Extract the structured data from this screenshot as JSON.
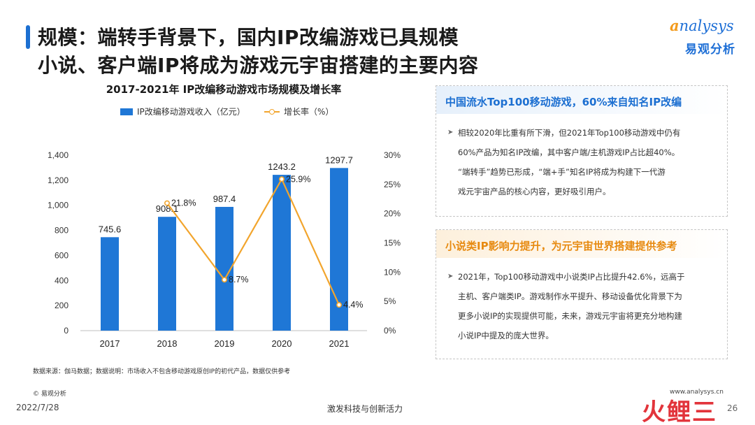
{
  "header": {
    "title_line1": "规模：端转手背景下，国内IP改编游戏已具规模",
    "title_line2": "小说、客户端IP将成为游戏元宇宙搭建的主要内容"
  },
  "logo": {
    "word_prefix": "a",
    "word_rest": "nalysys",
    "cn": "易观分析"
  },
  "chart_title": "2017-2021年 IP改编移动游戏市场规模及增长率",
  "chart_data": {
    "type": "bar",
    "title": "2017-2021年 IP改编移动游戏市场规模及增长率",
    "categories": [
      "2017",
      "2018",
      "2019",
      "2020",
      "2021"
    ],
    "series": [
      {
        "name": "IP改编移动游戏收入（亿元）",
        "type": "bar",
        "axis": "left",
        "values": [
          745.6,
          908.1,
          987.4,
          1243.2,
          1297.7
        ],
        "labels": [
          "745.6",
          "908.1",
          "987.4",
          "1243.2",
          "1297.7"
        ],
        "color": "#1f77d6"
      },
      {
        "name": "增长率（%）",
        "type": "line",
        "axis": "right",
        "values": [
          null,
          21.8,
          8.7,
          25.9,
          4.4
        ],
        "labels": [
          "",
          "21.8%",
          "8.7%",
          "25.9%",
          "4.4%"
        ],
        "color": "#f2a52d"
      }
    ],
    "y_left": {
      "min": 0,
      "max": 1400,
      "ticks": [
        "0",
        "200",
        "400",
        "600",
        "800",
        "1,000",
        "1,200",
        "1,400"
      ]
    },
    "y_right": {
      "min": 0,
      "max": 30,
      "ticks": [
        "0%",
        "5%",
        "10%",
        "15%",
        "20%",
        "25%",
        "30%"
      ]
    },
    "grid": false,
    "legend_position": "top"
  },
  "panel1": {
    "title": "中国流水Top100移动游戏，60%来自知名IP改编",
    "line1": "相较2020年比重有所下滑，但2021年Top100移动游戏中仍有",
    "line2": "60%产品为知名IP改编，其中客户端/主机游戏IP占比超40%。",
    "line3": "“端转手”趋势已形成，“端+手”知名IP将成为构建下一代游",
    "line4": "戏元宇宙产品的核心内容，更好吸引用户。"
  },
  "panel2": {
    "title": "小说类IP影响力提升，为元宇宙世界搭建提供参考",
    "line1": "2021年，Top100移动游戏中小说类IP占比提升42.6%，远高于",
    "line2": "主机、客户端类IP。游戏制作水平提升、移动设备优化背景下为",
    "line3": "更多小说IP的实现提供可能，未来，游戏元宇宙将更充分地构建",
    "line4": "小说IP中提及的庞大世界。"
  },
  "footer": {
    "source_note": "数据来源：伽马数据；数据说明：市场收入不包含移动游戏原创IP的初代产品，数据仅供参考",
    "copyright": "© 易观分析",
    "date": "2022/7/28",
    "slogan": "激发科技与创新活力",
    "website": "www.analysys.cn",
    "page": "26",
    "brand": "火鲤三"
  },
  "colors": {
    "accent_blue": "#1c6fd1",
    "accent_orange": "#e78a10",
    "bar": "#1f77d6",
    "line": "#f2a52d"
  }
}
